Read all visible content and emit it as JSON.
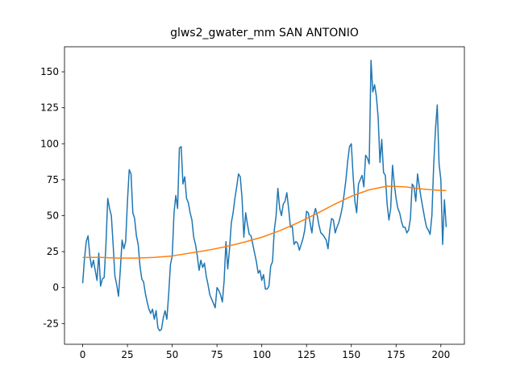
{
  "chart_data": {
    "type": "line",
    "title": "glws2_gwater_mm SAN ANTONIO",
    "xlim": [
      -10.15,
      213.15
    ],
    "xticks": [
      0,
      25,
      50,
      75,
      100,
      125,
      150,
      175,
      200
    ],
    "ylim": [
      -39.4,
      167.4
    ],
    "yticks": [
      -25,
      0,
      25,
      50,
      75,
      100,
      125,
      150
    ],
    "grid": false,
    "series": [
      {
        "color": "#1f77b4",
        "values": [
          3,
          20,
          32,
          36,
          22,
          14,
          19,
          12,
          5,
          24,
          1,
          6,
          7,
          30,
          62,
          55,
          50,
          30,
          8,
          2,
          -6,
          12,
          33,
          27,
          32,
          60,
          82,
          79,
          52,
          48,
          36,
          30,
          15,
          6,
          4,
          -4,
          -10,
          -15,
          -18,
          -15,
          -22,
          -16,
          -28,
          -30,
          -29,
          -21,
          -16,
          -22,
          -5,
          16,
          22,
          52,
          64,
          55,
          97,
          98,
          72,
          77,
          62,
          59,
          52,
          47,
          35,
          30,
          22,
          12,
          19,
          14,
          17,
          8,
          2,
          -5,
          -8,
          -11,
          -14,
          0,
          -2,
          -5,
          -10,
          5,
          32,
          13,
          27,
          45,
          52,
          62,
          70,
          79,
          77,
          62,
          35,
          52,
          44,
          37,
          36,
          30,
          24,
          18,
          10,
          12,
          5,
          9,
          -1,
          -1,
          1,
          15,
          18,
          40,
          50,
          69,
          55,
          50,
          58,
          60,
          66,
          55,
          42,
          43,
          30,
          32,
          31,
          26,
          30,
          34,
          40,
          53,
          52,
          45,
          38,
          50,
          55,
          50,
          43,
          38,
          37,
          35,
          33,
          27,
          40,
          48,
          47,
          38,
          42,
          45,
          50,
          56,
          65,
          75,
          88,
          98,
          100,
          78,
          60,
          52,
          72,
          75,
          78,
          70,
          92,
          90,
          86,
          158,
          136,
          141,
          133,
          118,
          87,
          103,
          80,
          78,
          58,
          47,
          55,
          85,
          72,
          62,
          55,
          52,
          46,
          42,
          42,
          38,
          40,
          48,
          72,
          70,
          60,
          79,
          70,
          62,
          55,
          48,
          42,
          40,
          37,
          50,
          85,
          110,
          127,
          86,
          75,
          30,
          61,
          42
        ]
      },
      {
        "color": "#ff7f0e",
        "x": [
          0,
          10,
          20,
          30,
          40,
          50,
          60,
          70,
          80,
          90,
          100,
          110,
          120,
          130,
          140,
          150,
          160,
          170,
          180,
          190,
          200,
          203
        ],
        "values": [
          21,
          21,
          20.5,
          20.5,
          21,
          22,
          24,
          26,
          28.5,
          31.5,
          35,
          39.5,
          45,
          51,
          57.5,
          63.5,
          68,
          70.5,
          70,
          68.5,
          67.5,
          67.5
        ]
      }
    ]
  }
}
